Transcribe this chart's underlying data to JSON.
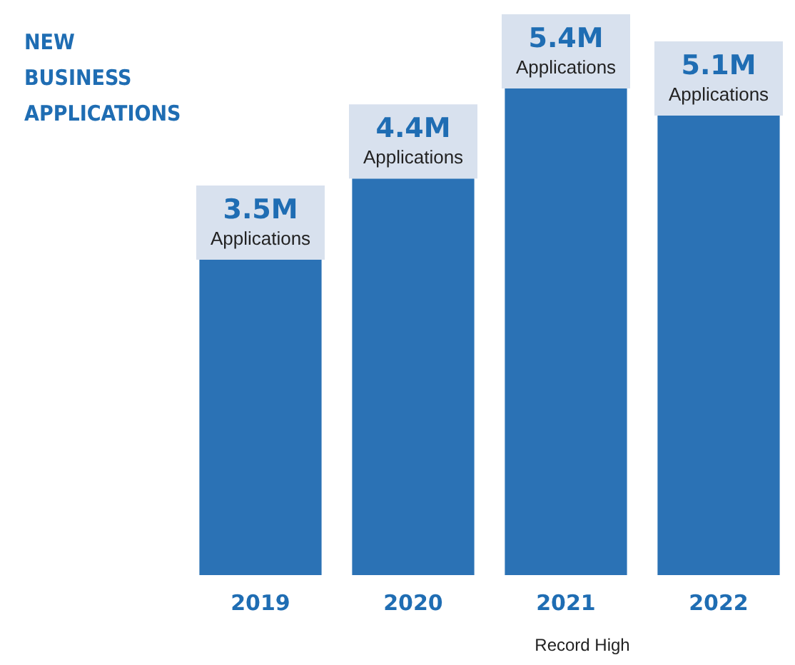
{
  "chart_data": {
    "type": "bar",
    "title": "NEW\nBUSINESS\nAPPLICATIONS",
    "categories": [
      "2019",
      "2020",
      "2021",
      "2022"
    ],
    "values": [
      3.5,
      4.4,
      5.4,
      5.1
    ],
    "value_labels": [
      "3.5M\nApplications",
      "4.4M\nApplications",
      "5.4M\nApplications",
      "5.1M\nApplications"
    ],
    "color": "#2b72b5",
    "annotations": [
      "Record High"
    ]
  }
}
